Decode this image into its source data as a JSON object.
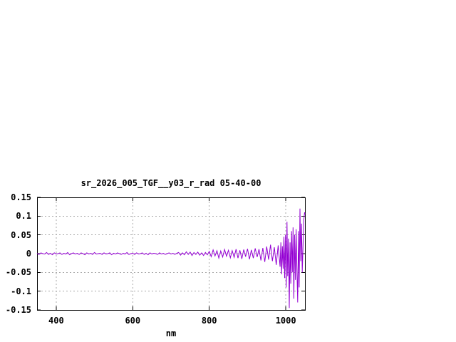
{
  "chart_data": {
    "type": "line",
    "title": "sr_2026_005_TGF__y03_r_rad 05-40-00",
    "xlabel": "nm",
    "ylabel": "",
    "xlim": [
      350,
      1050
    ],
    "ylim": [
      -0.15,
      0.15
    ],
    "xticks": {
      "values": [
        400,
        600,
        800,
        1000
      ],
      "labels": [
        "400",
        "600",
        "800",
        "1000"
      ]
    },
    "yticks": {
      "values": [
        0.15,
        0.1,
        0.05,
        0,
        -0.05,
        -0.1,
        -0.15
      ],
      "labels": [
        "0.15",
        "0.1",
        "0.05",
        "0",
        "-0.05",
        "-0.1",
        "-0.15"
      ]
    },
    "grid": true,
    "legend": "none",
    "colors": {
      "line": "#9400d3",
      "grid": "#a8a8a8",
      "axis": "#000000",
      "text": "#000000",
      "background": "#ffffff"
    },
    "series": [
      {
        "points": [
          [
            350,
            0.001
          ],
          [
            355,
            -0.002
          ],
          [
            360,
            0.002
          ],
          [
            365,
            0
          ],
          [
            370,
            -0.001
          ],
          [
            375,
            0.003
          ],
          [
            380,
            -0.002
          ],
          [
            385,
            0.001
          ],
          [
            390,
            -0.003
          ],
          [
            395,
            0.002
          ],
          [
            400,
            -0.001
          ],
          [
            405,
            0
          ],
          [
            410,
            0.002
          ],
          [
            415,
            -0.002
          ],
          [
            420,
            0.001
          ],
          [
            425,
            -0.001
          ],
          [
            430,
            0.003
          ],
          [
            435,
            -0.003
          ],
          [
            440,
            0
          ],
          [
            445,
            0.002
          ],
          [
            450,
            -0.001
          ],
          [
            455,
            0.001
          ],
          [
            460,
            -0.002
          ],
          [
            465,
            0.002
          ],
          [
            470,
            0
          ],
          [
            475,
            -0.003
          ],
          [
            480,
            0.002
          ],
          [
            485,
            -0.001
          ],
          [
            490,
            0.001
          ],
          [
            495,
            -0.002
          ],
          [
            500,
            0.003
          ],
          [
            505,
            -0.001
          ],
          [
            510,
            0
          ],
          [
            515,
            0.001
          ],
          [
            520,
            -0.002
          ],
          [
            525,
            0.002
          ],
          [
            530,
            -0.001
          ],
          [
            535,
            0
          ],
          [
            540,
            0.002
          ],
          [
            545,
            -0.003
          ],
          [
            550,
            0.001
          ],
          [
            555,
            -0.001
          ],
          [
            560,
            0.002
          ],
          [
            565,
            0
          ],
          [
            570,
            -0.002
          ],
          [
            575,
            0.001
          ],
          [
            580,
            -0.001
          ],
          [
            585,
            0.003
          ],
          [
            590,
            -0.002
          ],
          [
            595,
            0
          ],
          [
            600,
            0.001
          ],
          [
            605,
            -0.002
          ],
          [
            610,
            0.002
          ],
          [
            615,
            -0.001
          ],
          [
            620,
            0
          ],
          [
            625,
            0.002
          ],
          [
            630,
            -0.002
          ],
          [
            635,
            0.001
          ],
          [
            640,
            -0.003
          ],
          [
            645,
            0.002
          ],
          [
            650,
            -0.001
          ],
          [
            655,
            0.001
          ],
          [
            660,
            0
          ],
          [
            665,
            -0.002
          ],
          [
            670,
            0.002
          ],
          [
            675,
            -0.001
          ],
          [
            680,
            0.001
          ],
          [
            685,
            -0.002
          ],
          [
            690,
            0
          ],
          [
            695,
            0.002
          ],
          [
            700,
            -0.001
          ],
          [
            705,
            0.001
          ],
          [
            710,
            -0.002
          ],
          [
            715,
            0.001
          ],
          [
            720,
            0.003
          ],
          [
            725,
            -0.004
          ],
          [
            730,
            0.002
          ],
          [
            735,
            -0.003
          ],
          [
            740,
            0.005
          ],
          [
            745,
            -0.002
          ],
          [
            750,
            0.004
          ],
          [
            755,
            -0.005
          ],
          [
            760,
            0.003
          ],
          [
            765,
            -0.002
          ],
          [
            770,
            0.004
          ],
          [
            775,
            -0.004
          ],
          [
            780,
            0.002
          ],
          [
            785,
            -0.005
          ],
          [
            790,
            0.003
          ],
          [
            795,
            -0.003
          ],
          [
            800,
            0.006
          ],
          [
            805,
            -0.008
          ],
          [
            810,
            0.01
          ],
          [
            815,
            -0.006
          ],
          [
            820,
            0.008
          ],
          [
            825,
            -0.012
          ],
          [
            830,
            0.007
          ],
          [
            835,
            -0.009
          ],
          [
            840,
            0.011
          ],
          [
            845,
            -0.007
          ],
          [
            850,
            0.009
          ],
          [
            855,
            -0.011
          ],
          [
            860,
            0.008
          ],
          [
            865,
            -0.01
          ],
          [
            870,
            0.012
          ],
          [
            875,
            -0.012
          ],
          [
            880,
            0.009
          ],
          [
            885,
            -0.014
          ],
          [
            890,
            0.011
          ],
          [
            895,
            -0.008
          ],
          [
            900,
            0.013
          ],
          [
            905,
            -0.015
          ],
          [
            910,
            0.01
          ],
          [
            915,
            -0.012
          ],
          [
            920,
            0.014
          ],
          [
            925,
            -0.009
          ],
          [
            930,
            0.012
          ],
          [
            935,
            -0.018
          ],
          [
            940,
            0.015
          ],
          [
            945,
            -0.022
          ],
          [
            950,
            0.019
          ],
          [
            955,
            -0.016
          ],
          [
            960,
            0.024
          ],
          [
            965,
            -0.02
          ],
          [
            970,
            0.017
          ],
          [
            975,
            -0.03
          ],
          [
            980,
            0.022
          ],
          [
            985,
            -0.035
          ],
          [
            987,
            0.03
          ],
          [
            989,
            -0.055
          ],
          [
            991,
            0.02
          ],
          [
            993,
            -0.04
          ],
          [
            995,
            0.045
          ],
          [
            997,
            -0.065
          ],
          [
            999,
            0.05
          ],
          [
            1001,
            -0.09
          ],
          [
            1003,
            0.085
          ],
          [
            1005,
            -0.06
          ],
          [
            1007,
            0.04
          ],
          [
            1009,
            -0.145
          ],
          [
            1011,
            0.03
          ],
          [
            1013,
            -0.08
          ],
          [
            1015,
            0.06
          ],
          [
            1017,
            -0.05
          ],
          [
            1019,
            0.07
          ],
          [
            1021,
            -0.12
          ],
          [
            1023,
            0.05
          ],
          [
            1025,
            -0.07
          ],
          [
            1027,
            0.065
          ],
          [
            1029,
            -0.04
          ],
          [
            1031,
            -0.13
          ],
          [
            1033,
            0.06
          ],
          [
            1035,
            -0.09
          ],
          [
            1037,
            0.12
          ],
          [
            1039,
            -0.02
          ],
          [
            1041,
            0.08
          ],
          [
            1043,
            -0.05
          ],
          [
            1045,
            0.02
          ],
          [
            1047,
            0.09
          ],
          [
            1049,
            0.11
          ],
          [
            1050,
            0.105
          ]
        ]
      }
    ]
  }
}
